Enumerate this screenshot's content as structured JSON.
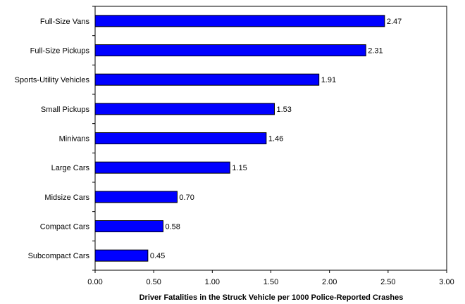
{
  "chart_data": {
    "type": "bar",
    "orientation": "horizontal",
    "categories": [
      "Full-Size Vans",
      "Full-Size Pickups",
      "Sports-Utility Vehicles",
      "Small Pickups",
      "Minivans",
      "Large Cars",
      "Midsize Cars",
      "Compact Cars",
      "Subcompact Cars"
    ],
    "values": [
      2.47,
      2.31,
      1.91,
      1.53,
      1.46,
      1.15,
      0.7,
      0.58,
      0.45
    ],
    "value_labels": [
      "2.47",
      "2.31",
      "1.91",
      "1.53",
      "1.46",
      "1.15",
      "0.70",
      "0.58",
      "0.45"
    ],
    "title": "",
    "xlabel": "Driver Fatalities in the Struck Vehicle per 1000 Police-Reported Crashes",
    "ylabel": "",
    "xlim": [
      0,
      3.0
    ],
    "xticks": [
      0,
      0.5,
      1.0,
      1.5,
      2.0,
      2.5,
      3.0
    ],
    "xtick_labels": [
      "0.00",
      "0.50",
      "1.00",
      "1.50",
      "2.00",
      "2.50",
      "3.00"
    ],
    "grid": false,
    "legend": "none",
    "bar_color": "#0000ff",
    "bar_edge_color": "#000000"
  }
}
